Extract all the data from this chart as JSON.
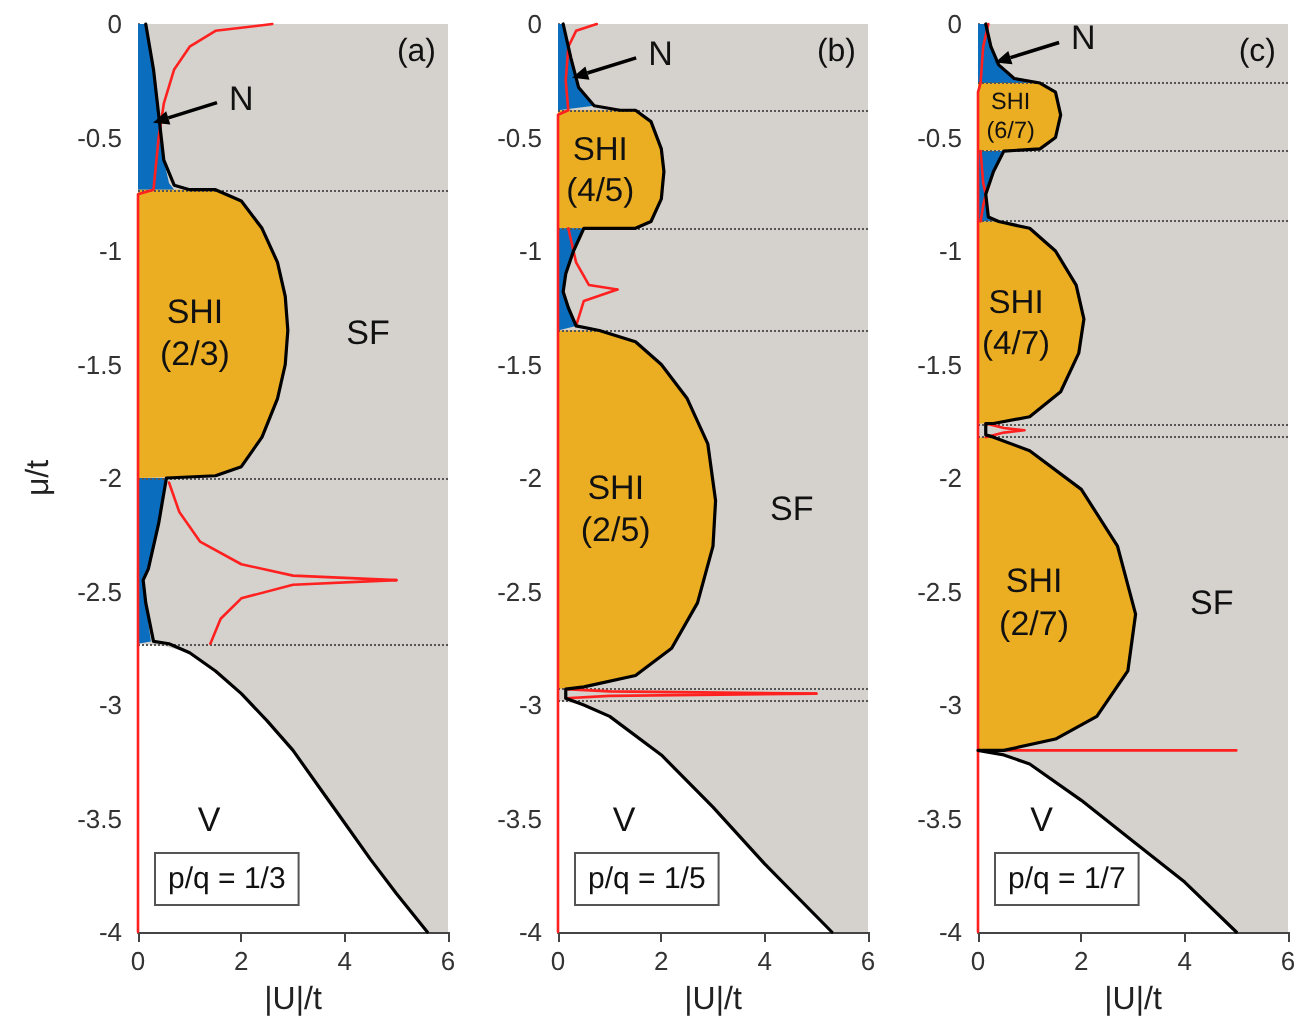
{
  "chart_data": [
    {
      "type": "area",
      "xlabel": "|U|/t",
      "ylabel": "μ/t",
      "xlim": [
        0,
        6
      ],
      "ylim": [
        -4,
        0
      ],
      "xticks": [
        0,
        2,
        4,
        6
      ],
      "yticks": [
        0,
        -0.5,
        -1,
        -1.5,
        -2,
        -2.5,
        -3,
        -3.5,
        -4
      ],
      "grid": false,
      "bands": [
        {
          "axis": "x",
          "from": 0,
          "to": 6,
          "color": "#d5d1cc",
          "label": "SF"
        }
      ],
      "ref_lines": [
        {
          "axis": "y",
          "value": -0.73,
          "color": "#555555",
          "line_style": "dotted"
        },
        {
          "axis": "y",
          "value": -2,
          "color": "#555555",
          "line_style": "dotted"
        },
        {
          "axis": "y",
          "value": -2.73,
          "color": "#555555",
          "line_style": "dotted"
        }
      ],
      "series": [
        {
          "name": "V",
          "color": "#ffffff",
          "x": [
            0,
            0.5,
            1,
            1.5,
            2,
            2.5,
            3,
            3.5,
            4,
            4.5,
            5,
            5.6,
            0
          ],
          "values": [
            -2.73,
            -2.74,
            -2.77,
            -2.85,
            -2.95,
            -3.07,
            -3.2,
            -3.36,
            -3.52,
            -3.68,
            -3.83,
            -4,
            -4
          ]
        },
        {
          "name": "N",
          "color": "#0b6dbd",
          "x": [
            0,
            0.15,
            0.3,
            0.4,
            0.5,
            0.6,
            0.7,
            0
          ],
          "values": [
            0,
            0,
            -0.2,
            -0.4,
            -0.6,
            -0.7,
            -0.73,
            -0.73
          ]
        },
        {
          "name": "SHI\n(2/3)",
          "color": "#ebae22",
          "x": [
            0,
            1.5,
            2,
            2.4,
            2.7,
            2.85,
            2.9,
            2.85,
            2.7,
            2.4,
            2,
            1.5,
            0
          ],
          "values": [
            -0.73,
            -0.73,
            -0.78,
            -0.9,
            -1.05,
            -1.2,
            -1.35,
            -1.5,
            -1.65,
            -1.82,
            -1.95,
            -1.99,
            -2
          ]
        },
        {
          "color": "#0b6dbd",
          "x": [
            0,
            0.55,
            0.4,
            0.2,
            0.1,
            0.15,
            0.25,
            0
          ],
          "values": [
            -2,
            -2,
            -2.2,
            -2.4,
            -2.45,
            -2.55,
            -2.72,
            -2.73
          ]
        },
        {
          "type": "line",
          "color": "#ff2020",
          "x": [
            2.6,
            1.5,
            1,
            0.7,
            0.5,
            0.4,
            0.3,
            0,
            0
          ],
          "values": [
            0,
            -0.03,
            -0.1,
            -0.2,
            -0.35,
            -0.5,
            -0.73,
            -0.75,
            -4
          ]
        },
        {
          "type": "line",
          "color": "#ff2020",
          "x": [
            0.6,
            0.8,
            1.2,
            2,
            3,
            5
          ],
          "values": [
            -2.02,
            -2.15,
            -2.28,
            -2.38,
            -2.43,
            -2.45
          ]
        },
        {
          "type": "line",
          "color": "#ff2020",
          "x": [
            1.4,
            1.6,
            2,
            3,
            5
          ],
          "values": [
            -2.73,
            -2.62,
            -2.53,
            -2.47,
            -2.45
          ]
        },
        {
          "type": "line",
          "color": "#000000",
          "x": [
            0.15,
            0.3,
            0.4,
            0.5,
            0.7,
            1,
            1.5,
            2,
            2.4,
            2.7,
            2.85,
            2.9,
            2.85,
            2.7,
            2.4,
            2,
            1.5,
            0.55,
            0.4,
            0.2,
            0.1,
            0.15,
            0.3,
            0.6,
            1,
            1.5,
            2,
            2.5,
            3,
            3.5,
            4,
            4.5,
            5,
            5.6
          ],
          "values": [
            0,
            -0.2,
            -0.4,
            -0.6,
            -0.71,
            -0.73,
            -0.73,
            -0.78,
            -0.9,
            -1.05,
            -1.2,
            -1.35,
            -1.5,
            -1.65,
            -1.82,
            -1.95,
            -1.99,
            -2,
            -2.2,
            -2.4,
            -2.45,
            -2.55,
            -2.72,
            -2.73,
            -2.77,
            -2.85,
            -2.95,
            -3.07,
            -3.2,
            -3.36,
            -3.52,
            -3.68,
            -3.83,
            -4
          ]
        }
      ],
      "annotations": [
        "(a)",
        "p/q = 1/3"
      ]
    },
    {
      "type": "area",
      "xlabel": "|U|/t",
      "xlim": [
        0,
        6
      ],
      "ylim": [
        -4,
        0
      ],
      "xticks": [
        0,
        2,
        4,
        6
      ],
      "yticks": [
        0,
        -0.5,
        -1,
        -1.5,
        -2,
        -2.5,
        -3,
        -3.5,
        -4
      ],
      "grid": false,
      "bands": [
        {
          "axis": "x",
          "from": 0,
          "to": 6,
          "color": "#d5d1cc",
          "label": "SF"
        }
      ],
      "ref_lines": [
        {
          "axis": "y",
          "value": -0.38,
          "color": "#555555",
          "line_style": "dotted"
        },
        {
          "axis": "y",
          "value": -0.9,
          "color": "#555555",
          "line_style": "dotted"
        },
        {
          "axis": "y",
          "value": -1.35,
          "color": "#555555",
          "line_style": "dotted"
        },
        {
          "axis": "y",
          "value": -2.93,
          "color": "#555555",
          "line_style": "dotted"
        },
        {
          "axis": "y",
          "value": -2.98,
          "color": "#555555",
          "line_style": "dotted"
        }
      ],
      "series": [
        {
          "name": "V",
          "color": "#ffffff",
          "x": [
            0,
            0.5,
            1,
            2,
            3,
            4,
            5.3,
            0
          ],
          "values": [
            -2.98,
            -3,
            -3.05,
            -3.22,
            -3.45,
            -3.7,
            -4,
            -4
          ]
        },
        {
          "name": "N",
          "color": "#0b6dbd",
          "x": [
            0,
            0.1,
            0.25,
            0.4,
            0.7,
            0
          ],
          "values": [
            0,
            0,
            -0.15,
            -0.28,
            -0.36,
            -0.38
          ]
        },
        {
          "name": "SHI\n(4/5)",
          "color": "#ebae22",
          "x": [
            0,
            1.5,
            1.8,
            2,
            2.05,
            2,
            1.8,
            1.5,
            0
          ],
          "values": [
            -0.38,
            -0.38,
            -0.43,
            -0.55,
            -0.65,
            -0.77,
            -0.87,
            -0.9,
            -0.9
          ]
        },
        {
          "color": "#0b6dbd",
          "x": [
            0,
            0.5,
            0.3,
            0.15,
            0.1,
            0.2,
            0.35,
            0
          ],
          "values": [
            -0.9,
            -0.9,
            -1,
            -1.1,
            -1.18,
            -1.25,
            -1.33,
            -1.35
          ]
        },
        {
          "name": "SHI\n(2/5)",
          "color": "#ebae22",
          "x": [
            0,
            0.8,
            1.5,
            2,
            2.5,
            2.9,
            3.05,
            3,
            2.7,
            2.2,
            1.5,
            0.5,
            0
          ],
          "values": [
            -1.35,
            -1.35,
            -1.4,
            -1.5,
            -1.65,
            -1.85,
            -2.1,
            -2.3,
            -2.55,
            -2.75,
            -2.87,
            -2.92,
            -2.93
          ]
        },
        {
          "type": "line",
          "color": "#ff2020",
          "x": [
            0.75,
            0.35,
            0.2,
            0.15,
            0.2,
            0,
            0
          ],
          "values": [
            0,
            -0.03,
            -0.1,
            -0.25,
            -0.38,
            -0.4,
            -4
          ]
        },
        {
          "type": "line",
          "color": "#ff2020",
          "x": [
            0.2,
            0.35,
            0.6,
            1.15
          ],
          "values": [
            -0.9,
            -1.05,
            -1.15,
            -1.17
          ]
        },
        {
          "type": "line",
          "color": "#ff2020",
          "x": [
            0.35,
            0.5,
            1.15
          ],
          "values": [
            -1.33,
            -1.22,
            -1.17
          ]
        },
        {
          "type": "line",
          "color": "#ff2020",
          "x": [
            0.15,
            1,
            5
          ],
          "values": [
            -2.93,
            -2.94,
            -2.95
          ]
        },
        {
          "type": "line",
          "color": "#ff2020",
          "x": [
            0.15,
            1,
            5
          ],
          "values": [
            -2.97,
            -2.96,
            -2.95
          ]
        },
        {
          "type": "line",
          "color": "#000000",
          "x": [
            0.1,
            0.25,
            0.4,
            0.7,
            1.2,
            1.5,
            1.8,
            2,
            2.05,
            2,
            1.8,
            1.5,
            0.5,
            0.3,
            0.15,
            0.1,
            0.2,
            0.35,
            0.8,
            1.5,
            2,
            2.5,
            2.9,
            3.05,
            3,
            2.7,
            2.2,
            1.5,
            0.5,
            0.15,
            0.15,
            0.5,
            1,
            2,
            3,
            4,
            5.3
          ],
          "values": [
            0,
            -0.15,
            -0.28,
            -0.36,
            -0.38,
            -0.38,
            -0.43,
            -0.55,
            -0.65,
            -0.77,
            -0.87,
            -0.9,
            -0.9,
            -1,
            -1.1,
            -1.18,
            -1.25,
            -1.33,
            -1.35,
            -1.4,
            -1.5,
            -1.65,
            -1.85,
            -2.1,
            -2.3,
            -2.55,
            -2.75,
            -2.87,
            -2.92,
            -2.93,
            -2.97,
            -3,
            -3.05,
            -3.22,
            -3.45,
            -3.7,
            -4
          ]
        }
      ],
      "annotations": [
        "(b)",
        "p/q = 1/5"
      ]
    },
    {
      "type": "area",
      "xlabel": "|U|/t",
      "xlim": [
        0,
        6
      ],
      "ylim": [
        -4,
        0
      ],
      "xticks": [
        0,
        2,
        4,
        6
      ],
      "yticks": [
        0,
        -0.5,
        -1,
        -1.5,
        -2,
        -2.5,
        -3,
        -3.5,
        -4
      ],
      "grid": false,
      "bands": [
        {
          "axis": "x",
          "from": 0,
          "to": 6,
          "color": "#d5d1cc",
          "label": "SF"
        }
      ],
      "ref_lines": [
        {
          "axis": "y",
          "value": -0.26,
          "color": "#555555",
          "line_style": "dotted"
        },
        {
          "axis": "y",
          "value": -0.56,
          "color": "#555555",
          "line_style": "dotted"
        },
        {
          "axis": "y",
          "value": -0.87,
          "color": "#555555",
          "line_style": "dotted"
        },
        {
          "axis": "y",
          "value": -1.76,
          "color": "#555555",
          "line_style": "dotted"
        },
        {
          "axis": "y",
          "value": -1.82,
          "color": "#555555",
          "line_style": "dotted"
        }
      ],
      "series": [
        {
          "name": "V",
          "color": "#ffffff",
          "x": [
            0,
            0.5,
            1,
            2,
            3,
            4,
            5,
            0
          ],
          "values": [
            -3.2,
            -3.22,
            -3.26,
            -3.42,
            -3.6,
            -3.78,
            -4,
            -4
          ]
        },
        {
          "name": "N",
          "color": "#0b6dbd",
          "x": [
            0,
            0.15,
            0.25,
            0.4,
            0.7,
            1.2,
            0
          ],
          "values": [
            0,
            0,
            -0.1,
            -0.18,
            -0.24,
            -0.26,
            -0.26
          ]
        },
        {
          "name": "SHI\n(6/7)",
          "color": "#ebae22",
          "x": [
            0,
            1.2,
            1.5,
            1.6,
            1.5,
            1.2,
            0
          ],
          "values": [
            -0.26,
            -0.26,
            -0.3,
            -0.4,
            -0.5,
            -0.55,
            -0.56
          ]
        },
        {
          "color": "#0b6dbd",
          "x": [
            0,
            0.5,
            0.3,
            0.15,
            0.2,
            0.4,
            0
          ],
          "values": [
            -0.56,
            -0.56,
            -0.65,
            -0.75,
            -0.85,
            -0.87,
            -0.87
          ]
        },
        {
          "name": "SHI\n(4/7)",
          "color": "#ebae22",
          "x": [
            0,
            0.4,
            1,
            1.5,
            1.9,
            2.05,
            1.95,
            1.6,
            1,
            0.3,
            0
          ],
          "values": [
            -0.87,
            -0.87,
            -0.9,
            -1,
            -1.15,
            -1.3,
            -1.45,
            -1.62,
            -1.73,
            -1.76,
            -1.76
          ]
        },
        {
          "name": "SHI\n(2/7)",
          "color": "#ebae22",
          "x": [
            0,
            0.3,
            1,
            2,
            2.7,
            3.05,
            2.9,
            2.3,
            1.5,
            0.5,
            0
          ],
          "values": [
            -1.82,
            -1.82,
            -1.88,
            -2.05,
            -2.3,
            -2.6,
            -2.85,
            -3.05,
            -3.15,
            -3.2,
            -3.2
          ]
        },
        {
          "type": "line",
          "color": "#ff2020",
          "x": [
            0.2,
            0.1,
            0.05,
            0,
            0,
            5,
            0,
            0
          ],
          "values": [
            0,
            -0.1,
            -0.26,
            -0.3,
            -3.2,
            -3.2,
            -3.2,
            -4
          ]
        },
        {
          "type": "line",
          "color": "#ff2020",
          "x": [
            0.05,
            0.1,
            0.15,
            0.1,
            0.05
          ],
          "values": [
            -0.56,
            -0.7,
            -0.75,
            -0.8,
            -0.87
          ]
        },
        {
          "type": "line",
          "color": "#ff2020",
          "x": [
            0.15,
            0.5,
            0.9,
            0.5,
            0.15
          ],
          "values": [
            -1.76,
            -1.78,
            -1.79,
            -1.8,
            -1.82
          ]
        },
        {
          "type": "line",
          "color": "#000000",
          "x": [
            0.15,
            0.25,
            0.4,
            0.7,
            1.2,
            1.5,
            1.6,
            1.5,
            1.2,
            0.5,
            0.3,
            0.15,
            0.2,
            0.4,
            1,
            1.5,
            1.9,
            2.05,
            1.95,
            1.6,
            1,
            0.3,
            0.15,
            0.15,
            0.3,
            1,
            2,
            2.7,
            3.05,
            2.9,
            2.3,
            1.5,
            0.5,
            0,
            0.5,
            1,
            2,
            3,
            4,
            5
          ],
          "values": [
            0,
            -0.1,
            -0.18,
            -0.24,
            -0.26,
            -0.3,
            -0.4,
            -0.5,
            -0.55,
            -0.56,
            -0.65,
            -0.75,
            -0.85,
            -0.87,
            -0.9,
            -1,
            -1.15,
            -1.3,
            -1.45,
            -1.62,
            -1.73,
            -1.76,
            -1.76,
            -1.81,
            -1.82,
            -1.88,
            -2.05,
            -2.3,
            -2.6,
            -2.85,
            -3.05,
            -3.15,
            -3.2,
            -3.2,
            -3.22,
            -3.26,
            -3.42,
            -3.6,
            -3.78,
            -4
          ]
        }
      ],
      "annotations": [
        "(c)",
        "p/q = 1/7"
      ]
    }
  ]
}
